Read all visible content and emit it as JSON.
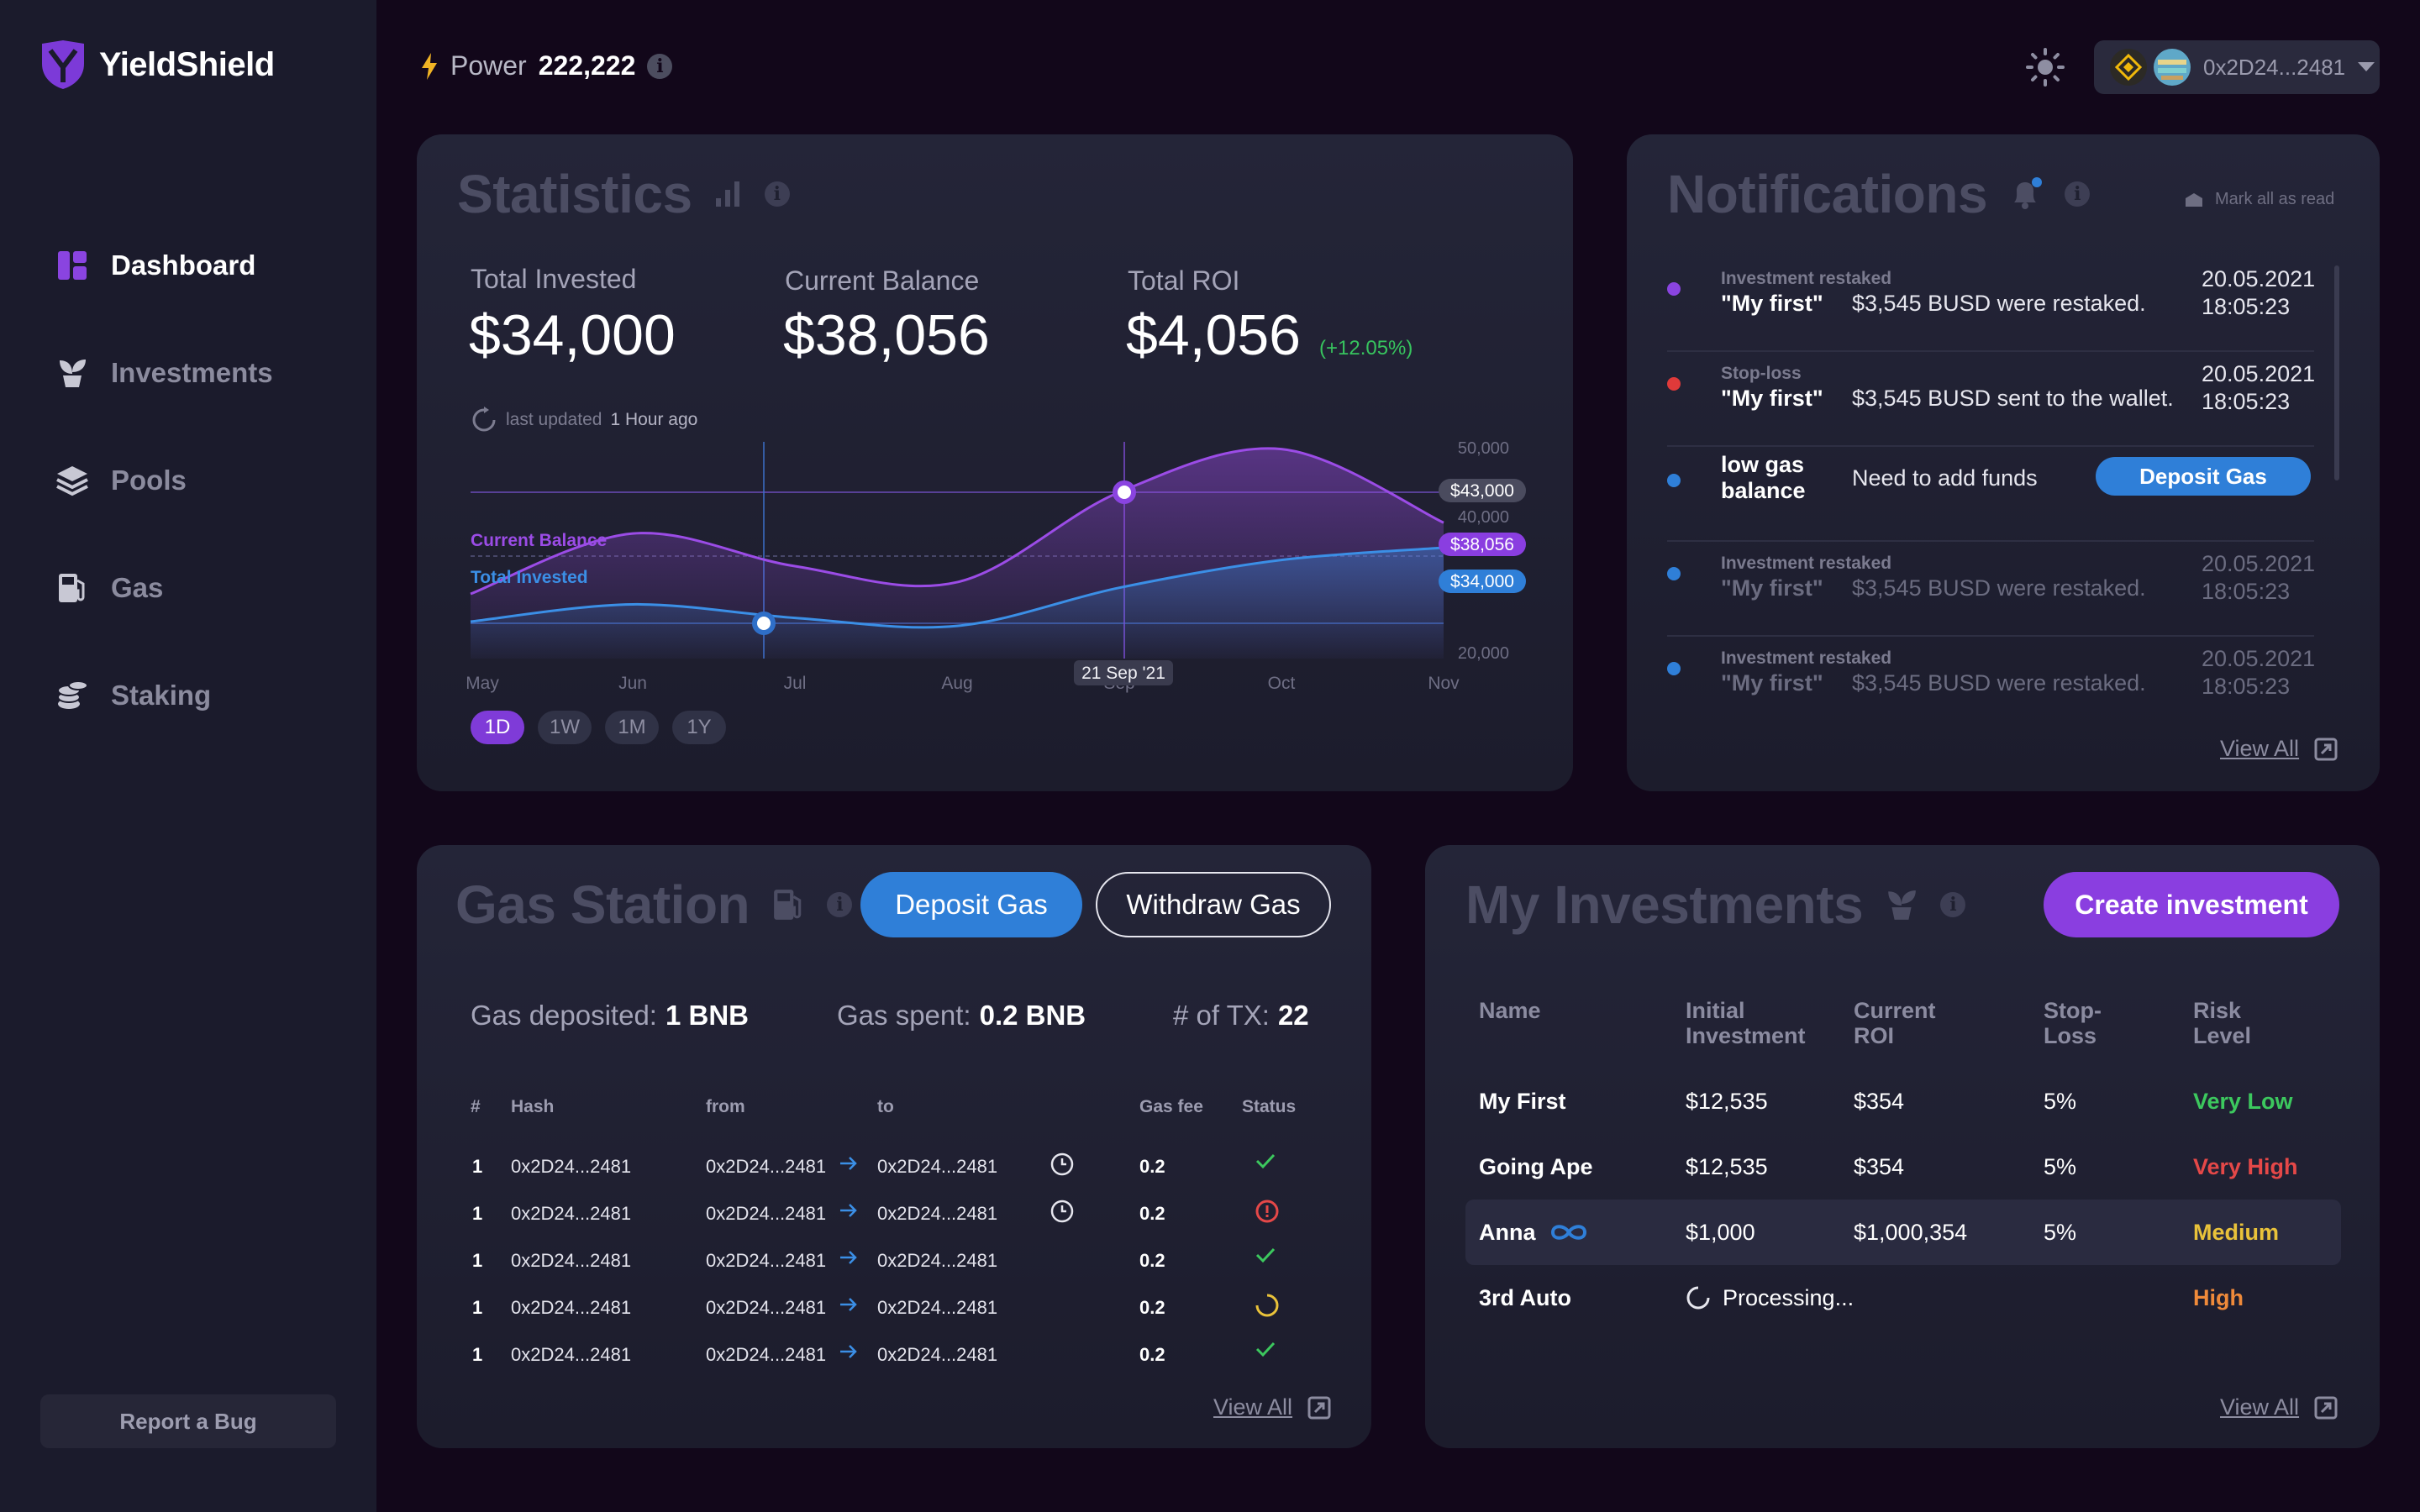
{
  "app": {
    "name": "YieldShield"
  },
  "sidebar": {
    "items": [
      {
        "label": "Dashboard",
        "icon": "dashboard-icon",
        "active": true
      },
      {
        "label": "Investments",
        "icon": "plant-icon",
        "active": false
      },
      {
        "label": "Pools",
        "icon": "layers-icon",
        "active": false
      },
      {
        "label": "Gas",
        "icon": "fuel-icon",
        "active": false
      },
      {
        "label": "Staking",
        "icon": "coins-icon",
        "active": false
      }
    ],
    "report_bug": "Report a Bug"
  },
  "header": {
    "power_label": "Power",
    "power_value": "222,222",
    "wallet_address": "0x2D24...2481"
  },
  "statistics": {
    "title": "Statistics",
    "total_invested_label": "Total Invested",
    "total_invested": "$34,000",
    "current_balance_label": "Current Balance",
    "current_balance": "$38,056",
    "total_roi_label": "Total ROI",
    "total_roi": "$4,056",
    "roi_pct": "(+12.05%)",
    "last_updated_label": "last updated",
    "last_updated_value": "1 Hour ago",
    "ranges": [
      "1D",
      "1W",
      "1M",
      "1Y"
    ],
    "active_range": "1D"
  },
  "chart_data": {
    "type": "area",
    "x": [
      "May",
      "Jun",
      "Jul",
      "Aug",
      "Sep",
      "Oct",
      "Nov"
    ],
    "series": [
      {
        "name": "Current Balance",
        "values": [
          26500,
          36300,
          31000,
          28400,
          43000,
          50000,
          38056
        ],
        "color": "#9b4ce6"
      },
      {
        "name": "Total Invested",
        "values": [
          22000,
          24800,
          22600,
          21300,
          27500,
          32000,
          34000
        ],
        "color": "#3b8fe6"
      }
    ],
    "y_ticks": [
      "50,000",
      "40,000",
      "20,000"
    ],
    "ylim": [
      16000,
      52000
    ],
    "value_tags": [
      "$43,000",
      "$38,056",
      "$34,000"
    ],
    "tooltip_date": "21 Sep '21",
    "grid": false
  },
  "notifications": {
    "title": "Notifications",
    "mark_all": "Mark all as read",
    "items": [
      {
        "type": "Investment restaked",
        "name": "\"My first\"",
        "message": "$3,545 BUSD were restaked.",
        "date": "20.05.2021",
        "time": "18:05:23",
        "dot_color": "#8a44e0",
        "dim": false
      },
      {
        "type": "Stop-loss",
        "name": "\"My first\"",
        "message": "$3,545 BUSD sent to the wallet.",
        "date": "20.05.2021",
        "time": "18:05:23",
        "dot_color": "#e03a3a",
        "dim": false
      },
      {
        "type": "",
        "name": "low gas balance",
        "message": "Need to add funds",
        "action": "Deposit Gas",
        "dot_color": "#2f7fd8",
        "dim": false
      },
      {
        "type": "Investment restaked",
        "name": "\"My first\"",
        "message": "$3,545 BUSD were restaked.",
        "date": "20.05.2021",
        "time": "18:05:23",
        "dot_color": "#2f7fd8",
        "dim": true
      },
      {
        "type": "Investment restaked",
        "name": "\"My first\"",
        "message": "$3,545 BUSD were restaked.",
        "date": "20.05.2021",
        "time": "18:05:23",
        "dot_color": "#2f7fd8",
        "dim": true
      }
    ],
    "view_all": "View All"
  },
  "gas_station": {
    "title": "Gas Station",
    "deposit_label": "Deposit Gas",
    "withdraw_label": "Withdraw Gas",
    "deposited_label": "Gas deposited:",
    "deposited_value": "1 BNB",
    "spent_label": "Gas spent:",
    "spent_value": "0.2 BNB",
    "tx_label": "# of TX:",
    "tx_value": "22",
    "columns": [
      "#",
      "Hash",
      "from",
      "to",
      "Gas fee",
      "Status"
    ],
    "rows": [
      {
        "num": "1",
        "hash": "0x2D24...2481",
        "from": "0x2D24...2481",
        "to": "0x2D24...2481",
        "pending": true,
        "fee": "0.2",
        "status": "success"
      },
      {
        "num": "1",
        "hash": "0x2D24...2481",
        "from": "0x2D24...2481",
        "to": "0x2D24...2481",
        "pending": true,
        "fee": "0.2",
        "status": "error"
      },
      {
        "num": "1",
        "hash": "0x2D24...2481",
        "from": "0x2D24...2481",
        "to": "0x2D24...2481",
        "pending": false,
        "fee": "0.2",
        "status": "success"
      },
      {
        "num": "1",
        "hash": "0x2D24...2481",
        "from": "0x2D24...2481",
        "to": "0x2D24...2481",
        "pending": false,
        "fee": "0.2",
        "status": "loading"
      },
      {
        "num": "1",
        "hash": "0x2D24...2481",
        "from": "0x2D24...2481",
        "to": "0x2D24...2481",
        "pending": false,
        "fee": "0.2",
        "status": "success"
      }
    ],
    "view_all": "View All"
  },
  "investments": {
    "title": "My Investments",
    "create_label": "Create investment",
    "columns": [
      "Name",
      "Initial Investment",
      "Current ROI",
      "Stop-Loss",
      "Risk Level"
    ],
    "rows": [
      {
        "name": "My First",
        "initial": "$12,535",
        "roi": "$354",
        "stop": "5%",
        "risk": "Very Low",
        "risk_color": "#3cc85e"
      },
      {
        "name": "Going Ape",
        "initial": "$12,535",
        "roi": "$354",
        "stop": "5%",
        "risk": "Very High",
        "risk_color": "#e54848"
      },
      {
        "name": "Anna",
        "initial": "$1,000",
        "roi": "$1,000,354",
        "stop": "5%",
        "risk": "Medium",
        "risk_color": "#e9c23a"
      },
      {
        "name": "3rd Auto",
        "processing": "Processing...",
        "risk": "High",
        "risk_color": "#ef8a3a"
      }
    ],
    "view_all": "View All"
  }
}
